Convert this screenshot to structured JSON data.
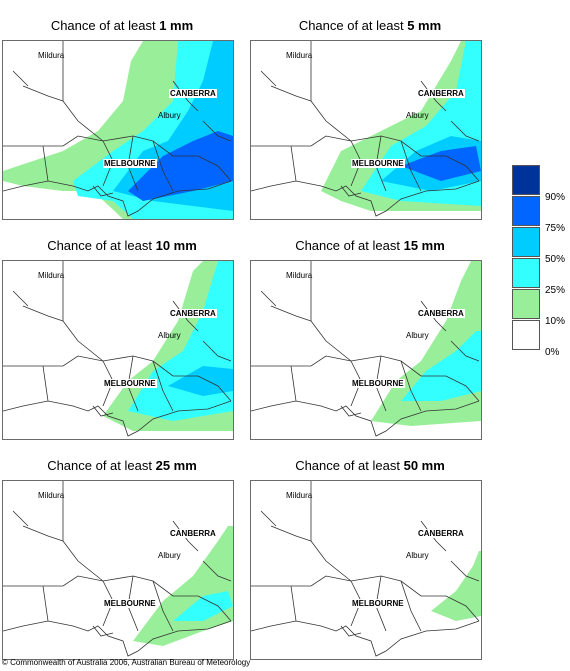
{
  "title_prefix": "Chance of at least",
  "panels": [
    {
      "amount": "1 mm",
      "level": 6
    },
    {
      "amount": "5 mm",
      "level": 5
    },
    {
      "amount": "10 mm",
      "level": 4
    },
    {
      "amount": "15 mm",
      "level": 3
    },
    {
      "amount": "25 mm",
      "level": 2
    },
    {
      "amount": "50 mm",
      "level": 1
    }
  ],
  "cities": [
    "Mildura",
    "CANBERRA",
    "Albury",
    "MELBOURNE"
  ],
  "legend": {
    "labels": [
      "90%",
      "75%",
      "50%",
      "25%",
      "10%",
      "0%"
    ],
    "colors": [
      "#003399",
      "#0066ff",
      "#00ccff",
      "#33ffff",
      "#99ee99",
      "#ffffff"
    ]
  },
  "copyright": "© Commonwealth of Australia 2006, Australian Bureau of Meteorology"
}
